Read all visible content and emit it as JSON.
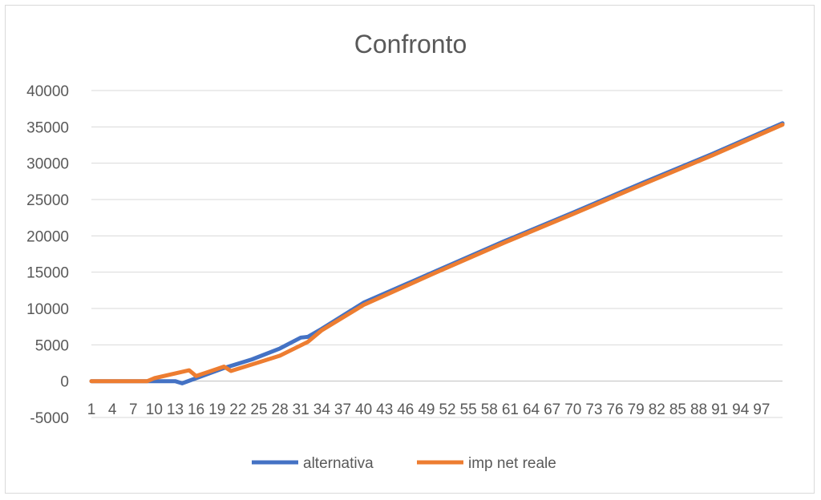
{
  "chart_data": {
    "type": "line",
    "title": "Confronto",
    "xlabel": "",
    "ylabel": "",
    "ylim": [
      -5000,
      40000
    ],
    "y_ticks": [
      "40000",
      "35000",
      "30000",
      "25000",
      "20000",
      "15000",
      "10000",
      "5000",
      "0",
      "-5000"
    ],
    "x_tick_labels": [
      "1",
      "4",
      "7",
      "10",
      "13",
      "16",
      "19",
      "22",
      "25",
      "28",
      "31",
      "34",
      "37",
      "40",
      "43",
      "46",
      "49",
      "52",
      "55",
      "58",
      "61",
      "64",
      "67",
      "70",
      "73",
      "76",
      "79",
      "82",
      "85",
      "88",
      "91",
      "94",
      "97"
    ],
    "grid": true,
    "legend_position": "bottom",
    "colors": {
      "alternativa": "#4472c4",
      "imp_net_reale": "#ed7d31",
      "grid": "#d9d9d9",
      "axis": "#bfbfbf"
    },
    "series": [
      {
        "name": "alternativa",
        "x": [
          1,
          9,
          13,
          14,
          16,
          20,
          24,
          28,
          31,
          32,
          34,
          40,
          50,
          60,
          70,
          80,
          90,
          100
        ],
        "values": [
          0,
          0,
          0,
          -300,
          400,
          1800,
          3000,
          4500,
          6000,
          6100,
          7200,
          10800,
          15000,
          19200,
          23200,
          27300,
          31300,
          35500
        ]
      },
      {
        "name": "imp net reale",
        "x": [
          1,
          9,
          10,
          15,
          16,
          20,
          21,
          25,
          28,
          32,
          34,
          40,
          50,
          60,
          70,
          80,
          90,
          100
        ],
        "values": [
          0,
          0,
          400,
          1500,
          700,
          2000,
          1400,
          2600,
          3500,
          5400,
          7000,
          10500,
          14800,
          19000,
          23000,
          27100,
          31100,
          35300
        ]
      }
    ]
  }
}
